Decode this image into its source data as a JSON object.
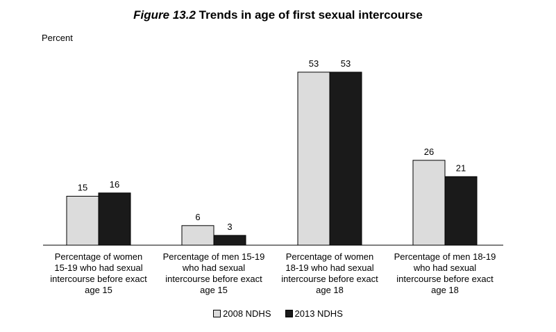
{
  "title_prefix": "Figure 13.2",
  "title_main": "Trends in age of first sexual intercourse",
  "chart_data": {
    "type": "bar",
    "title": "Figure 13.2 Trends in age of first sexual intercourse",
    "ylabel": "Percent",
    "xlabel": "",
    "ylim": [
      0,
      55
    ],
    "grid": false,
    "legend_position": "bottom",
    "categories": [
      [
        "Percentage of women",
        "15-19 who had sexual",
        "intercourse before exact",
        "age 15"
      ],
      [
        "Percentage of men 15-19",
        "who had sexual",
        "intercourse before exact",
        "age 15"
      ],
      [
        "Percentage of women",
        "18-19 who had sexual",
        "intercourse before exact",
        "age 18"
      ],
      [
        "Percentage of men 18-19",
        "who had sexual",
        "intercourse before exact",
        "age 18"
      ]
    ],
    "series": [
      {
        "name": "2008 NDHS",
        "values": [
          15,
          6,
          53,
          26
        ],
        "color": "#dcdcdc"
      },
      {
        "name": "2013 NDHS",
        "values": [
          16,
          3,
          53,
          21
        ],
        "color": "#1a1a1a"
      }
    ]
  }
}
